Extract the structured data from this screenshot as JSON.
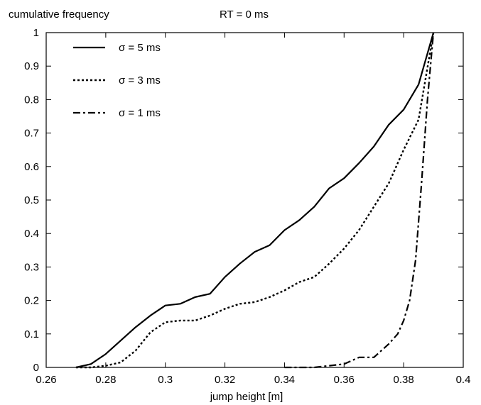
{
  "chart_data": {
    "type": "line",
    "title": "RT = 0 ms",
    "xlabel": "jump height [m]",
    "ylabel": "cumulative frequency",
    "xlim": [
      0.26,
      0.4
    ],
    "ylim": [
      0,
      1
    ],
    "xticks": [
      "0.26",
      "0.28",
      "0.3",
      "0.32",
      "0.34",
      "0.36",
      "0.38",
      "0.4"
    ],
    "yticks": [
      "0",
      "0.1",
      "0.2",
      "0.3",
      "0.4",
      "0.5",
      "0.6",
      "0.7",
      "0.8",
      "0.9",
      "1"
    ],
    "grid": false,
    "legend_position": "top-left",
    "series": [
      {
        "name": "σ = 5 ms",
        "style": "solid",
        "color": "#000000",
        "x": [
          0.27,
          0.275,
          0.28,
          0.285,
          0.29,
          0.295,
          0.3,
          0.305,
          0.31,
          0.315,
          0.32,
          0.325,
          0.33,
          0.335,
          0.34,
          0.345,
          0.35,
          0.355,
          0.36,
          0.365,
          0.37,
          0.375,
          0.38,
          0.385,
          0.39
        ],
        "y": [
          0.0,
          0.01,
          0.04,
          0.08,
          0.12,
          0.155,
          0.185,
          0.19,
          0.21,
          0.22,
          0.27,
          0.31,
          0.345,
          0.365,
          0.41,
          0.44,
          0.48,
          0.535,
          0.565,
          0.61,
          0.66,
          0.725,
          0.77,
          0.845,
          1.0
        ]
      },
      {
        "name": "σ = 3 ms",
        "style": "dotted",
        "color": "#000000",
        "x": [
          0.27,
          0.275,
          0.28,
          0.285,
          0.29,
          0.295,
          0.3,
          0.305,
          0.31,
          0.315,
          0.32,
          0.325,
          0.33,
          0.335,
          0.34,
          0.345,
          0.35,
          0.355,
          0.36,
          0.365,
          0.37,
          0.375,
          0.38,
          0.385,
          0.39
        ],
        "y": [
          0.0,
          0.0,
          0.005,
          0.015,
          0.05,
          0.105,
          0.135,
          0.14,
          0.14,
          0.155,
          0.175,
          0.19,
          0.195,
          0.21,
          0.23,
          0.255,
          0.27,
          0.31,
          0.355,
          0.41,
          0.48,
          0.55,
          0.65,
          0.74,
          1.0
        ]
      },
      {
        "name": "σ = 1 ms",
        "style": "dashdot",
        "color": "#000000",
        "x": [
          0.34,
          0.345,
          0.35,
          0.355,
          0.36,
          0.365,
          0.37,
          0.375,
          0.378,
          0.38,
          0.382,
          0.384,
          0.386,
          0.388,
          0.39
        ],
        "y": [
          0.0,
          0.0,
          0.0,
          0.005,
          0.01,
          0.03,
          0.03,
          0.07,
          0.1,
          0.14,
          0.2,
          0.32,
          0.55,
          0.8,
          1.0
        ]
      }
    ]
  }
}
